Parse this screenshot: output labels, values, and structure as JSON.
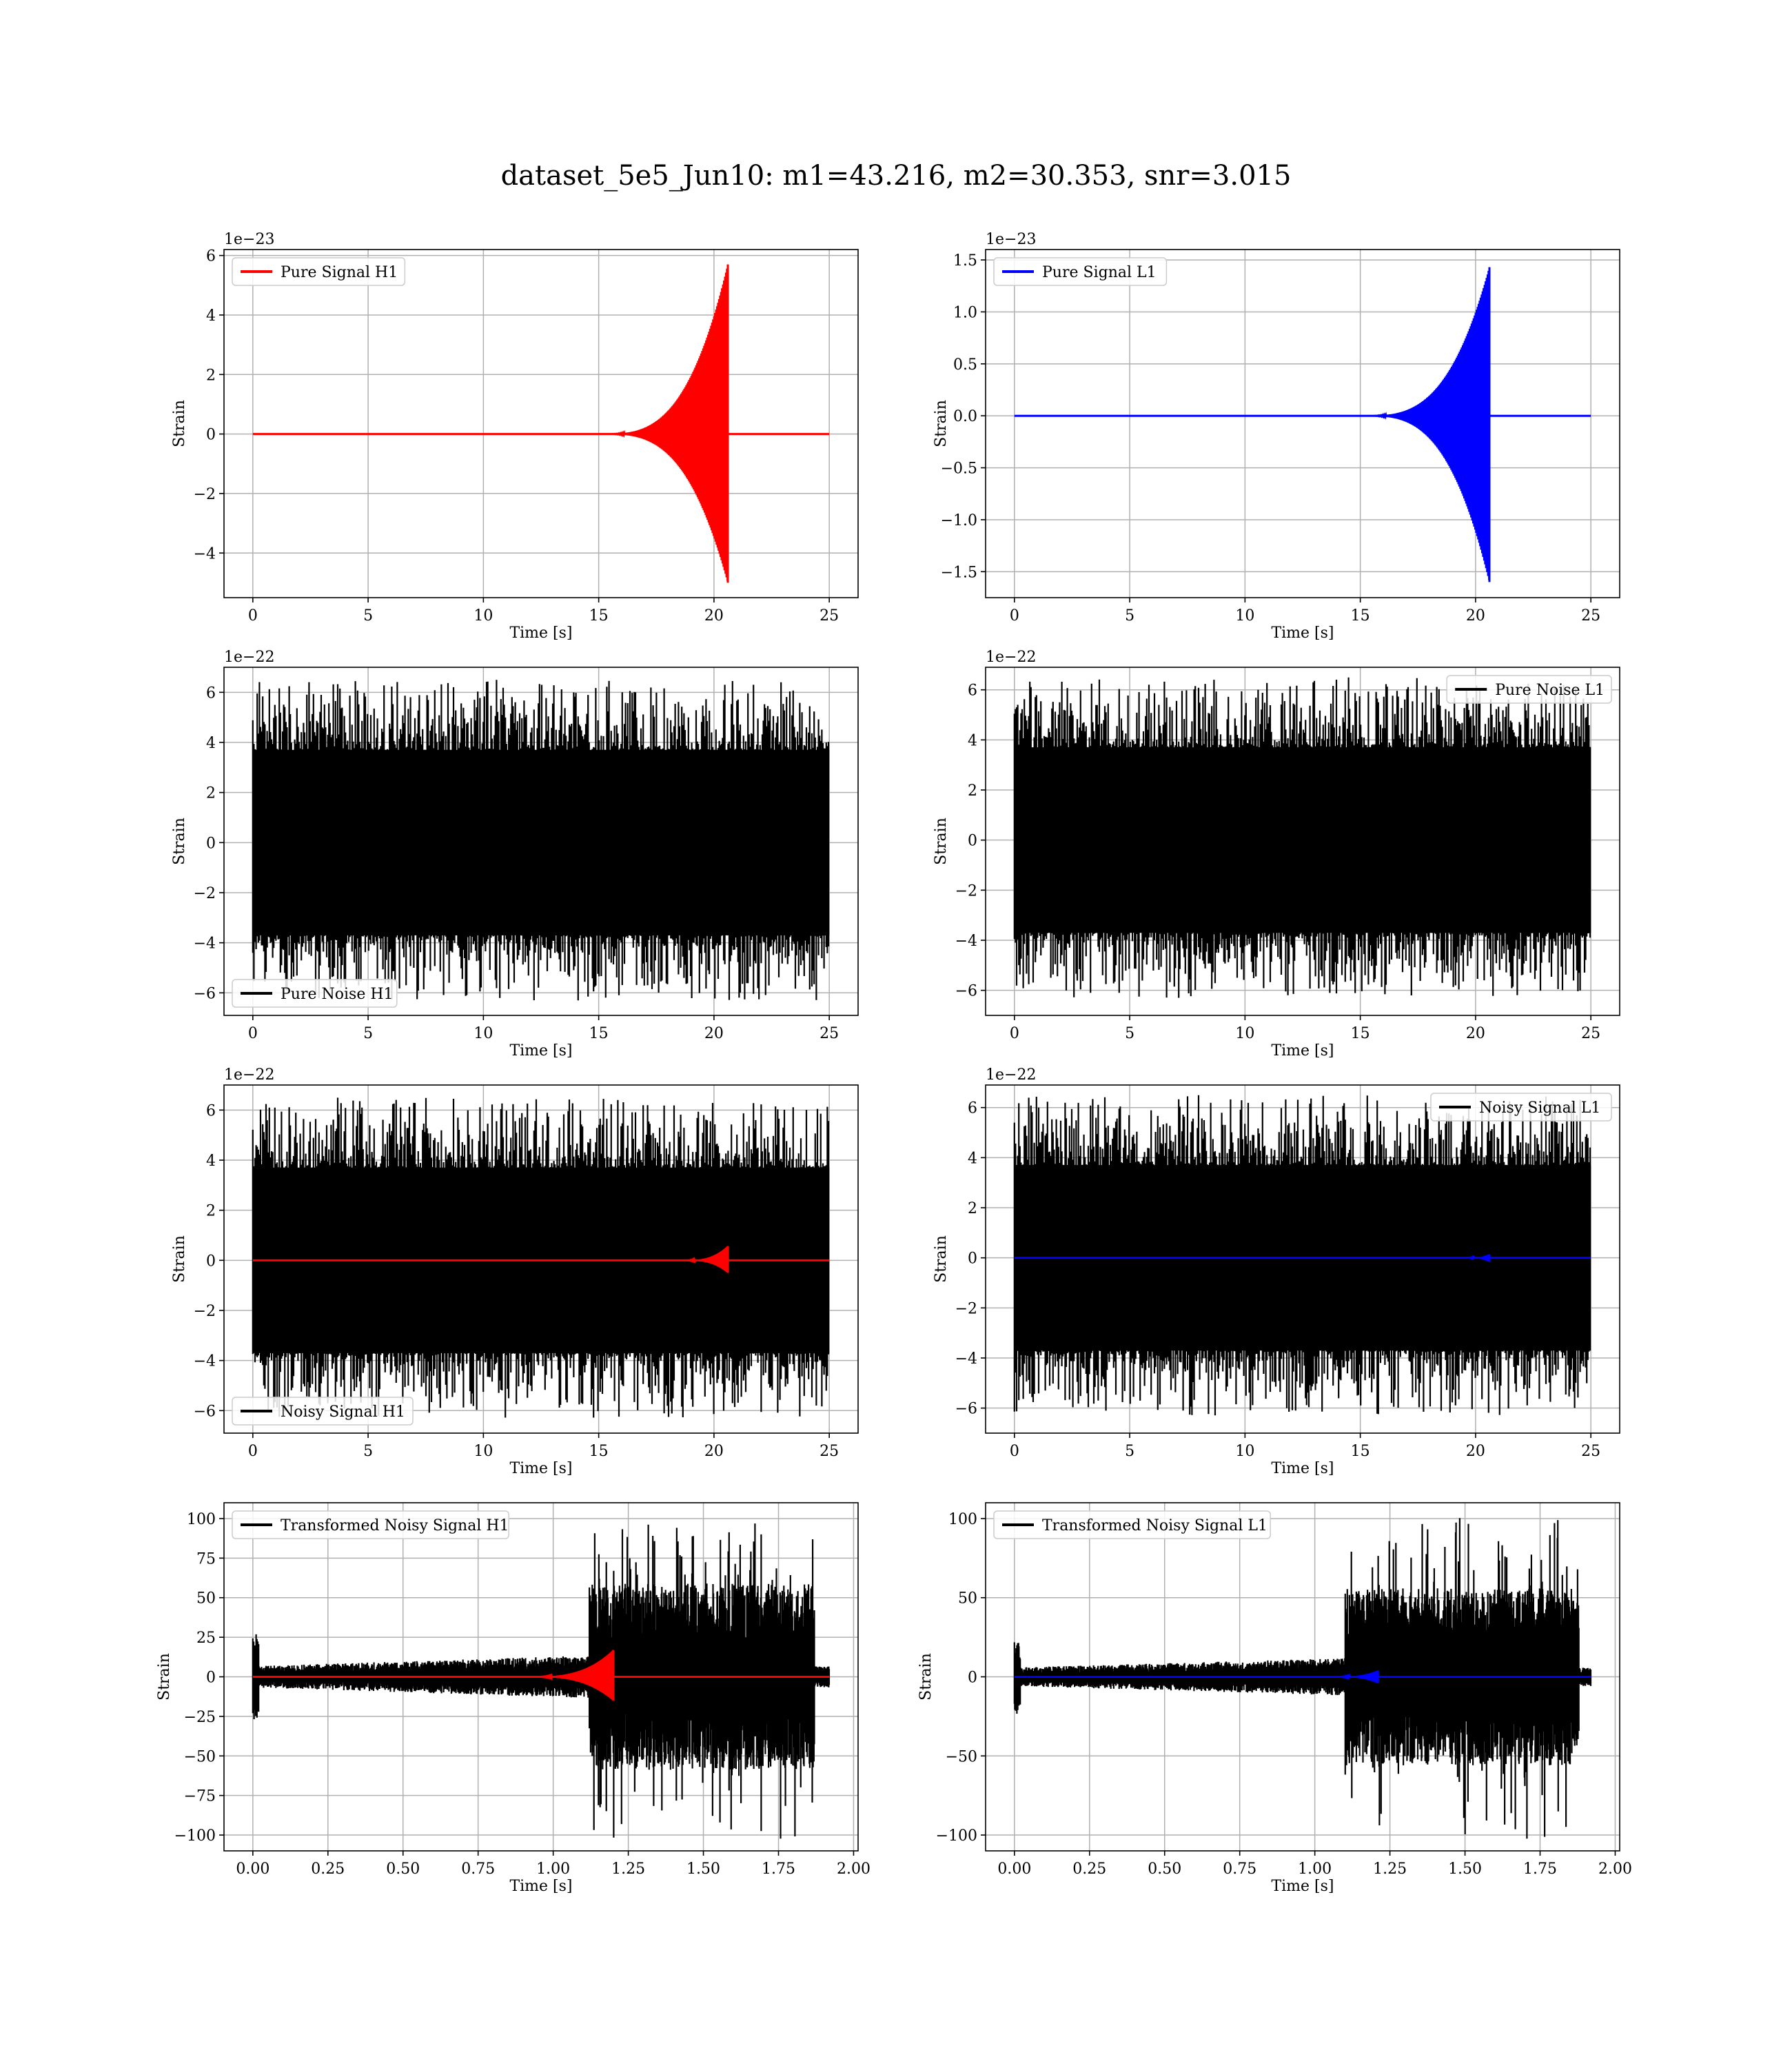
{
  "figure_title": "dataset_5e5_Jun10: m1=43.216, m2=30.353, snr=3.015",
  "chart_data": [
    {
      "type": "line",
      "panel": "pure-signal-h1",
      "xlabel": "Time [s]",
      "ylabel": "Strain",
      "offset_label": "1e−23",
      "xlim": [
        -1.25,
        26.25
      ],
      "ylim": [
        -5.5,
        6.2
      ],
      "xticks": [
        0,
        5,
        10,
        15,
        20,
        25
      ],
      "xtick_labels": [
        "0",
        "5",
        "10",
        "15",
        "20",
        "25"
      ],
      "yticks": [
        -4,
        -2,
        0,
        2,
        4,
        6
      ],
      "ytick_labels": [
        "−4",
        "−2",
        "0",
        "2",
        "4",
        "6"
      ],
      "legend": {
        "position": "upper-left",
        "entries": [
          {
            "label": "Pure Signal H1",
            "color": "#ff0000"
          }
        ]
      },
      "grid": true,
      "series": [
        {
          "name": "Pure Signal H1",
          "color": "#ff0000",
          "kind": "chirp",
          "x_start": 0,
          "x_merger": 20.6,
          "x_end": 25,
          "x_visible_start": 15,
          "peak_pos": 5.7,
          "peak_neg": -5.0
        }
      ]
    },
    {
      "type": "line",
      "panel": "pure-signal-l1",
      "xlabel": "Time [s]",
      "ylabel": "Strain",
      "offset_label": "1e−23",
      "xlim": [
        -1.25,
        26.25
      ],
      "ylim": [
        -1.75,
        1.6
      ],
      "xticks": [
        0,
        5,
        10,
        15,
        20,
        25
      ],
      "xtick_labels": [
        "0",
        "5",
        "10",
        "15",
        "20",
        "25"
      ],
      "yticks": [
        -1.5,
        -1.0,
        -0.5,
        0.0,
        0.5,
        1.0,
        1.5
      ],
      "ytick_labels": [
        "−1.5",
        "−1.0",
        "−0.5",
        "0.0",
        "0.5",
        "1.0",
        "1.5"
      ],
      "legend": {
        "position": "upper-left",
        "entries": [
          {
            "label": "Pure Signal L1",
            "color": "#0000ff"
          }
        ]
      },
      "grid": true,
      "series": [
        {
          "name": "Pure Signal L1",
          "color": "#0000ff",
          "kind": "chirp",
          "x_start": 0,
          "x_merger": 20.6,
          "x_end": 25,
          "x_visible_start": 15,
          "peak_pos": 1.43,
          "peak_neg": -1.6
        }
      ]
    },
    {
      "type": "line",
      "panel": "pure-noise-h1",
      "xlabel": "Time [s]",
      "ylabel": "Strain",
      "offset_label": "1e−22",
      "xlim": [
        -1.25,
        26.25
      ],
      "ylim": [
        -6.9,
        7.0
      ],
      "xticks": [
        0,
        5,
        10,
        15,
        20,
        25
      ],
      "xtick_labels": [
        "0",
        "5",
        "10",
        "15",
        "20",
        "25"
      ],
      "yticks": [
        -6,
        -4,
        -2,
        0,
        2,
        4,
        6
      ],
      "ytick_labels": [
        "−6",
        "−4",
        "−2",
        "0",
        "2",
        "4",
        "6"
      ],
      "legend": {
        "position": "lower-left",
        "entries": [
          {
            "label": "Pure Noise H1",
            "color": "#000000"
          }
        ]
      },
      "grid": true,
      "series": [
        {
          "name": "Pure Noise H1",
          "color": "#000000",
          "kind": "noise",
          "x_start": 0,
          "x_end": 25,
          "core": 3.7,
          "max": 6.5,
          "min": -6.3
        }
      ]
    },
    {
      "type": "line",
      "panel": "pure-noise-l1",
      "xlabel": "Time [s]",
      "ylabel": "Strain",
      "offset_label": "1e−22",
      "xlim": [
        -1.25,
        26.25
      ],
      "ylim": [
        -7.0,
        6.9
      ],
      "xticks": [
        0,
        5,
        10,
        15,
        20,
        25
      ],
      "xtick_labels": [
        "0",
        "5",
        "10",
        "15",
        "20",
        "25"
      ],
      "yticks": [
        -6,
        -4,
        -2,
        0,
        2,
        4,
        6
      ],
      "ytick_labels": [
        "−6",
        "−4",
        "−2",
        "0",
        "2",
        "4",
        "6"
      ],
      "legend": {
        "position": "upper-right",
        "entries": [
          {
            "label": "Pure Noise L1",
            "color": "#000000"
          }
        ]
      },
      "grid": true,
      "series": [
        {
          "name": "Pure Noise L1",
          "color": "#000000",
          "kind": "noise",
          "x_start": 0,
          "x_end": 25,
          "core": 3.7,
          "max": 6.5,
          "min": -6.3
        }
      ]
    },
    {
      "type": "line",
      "panel": "noisy-signal-h1",
      "xlabel": "Time [s]",
      "ylabel": "Strain",
      "offset_label": "1e−22",
      "xlim": [
        -1.25,
        26.25
      ],
      "ylim": [
        -6.9,
        7.0
      ],
      "xticks": [
        0,
        5,
        10,
        15,
        20,
        25
      ],
      "xtick_labels": [
        "0",
        "5",
        "10",
        "15",
        "20",
        "25"
      ],
      "yticks": [
        -6,
        -4,
        -2,
        0,
        2,
        4,
        6
      ],
      "ytick_labels": [
        "−6",
        "−4",
        "−2",
        "0",
        "2",
        "4",
        "6"
      ],
      "legend": {
        "position": "lower-left",
        "entries": [
          {
            "label": "Noisy Signal H1",
            "color": "#000000"
          }
        ]
      },
      "grid": true,
      "series": [
        {
          "name": "Noisy Signal H1",
          "color": "#000000",
          "kind": "noise",
          "x_start": 0,
          "x_end": 25,
          "core": 3.7,
          "max": 6.5,
          "min": -6.3
        },
        {
          "color": "#ff0000",
          "kind": "chirp",
          "x_start": 0,
          "x_merger": 20.6,
          "x_end": 25,
          "x_visible_start": 18.5,
          "peak_pos": 0.57,
          "peak_neg": -0.5
        }
      ]
    },
    {
      "type": "line",
      "panel": "noisy-signal-l1",
      "xlabel": "Time [s]",
      "ylabel": "Strain",
      "offset_label": "1e−22",
      "xlim": [
        -1.25,
        26.25
      ],
      "ylim": [
        -7.0,
        6.9
      ],
      "xticks": [
        0,
        5,
        10,
        15,
        20,
        25
      ],
      "xtick_labels": [
        "0",
        "5",
        "10",
        "15",
        "20",
        "25"
      ],
      "yticks": [
        -6,
        -4,
        -2,
        0,
        2,
        4,
        6
      ],
      "ytick_labels": [
        "−6",
        "−4",
        "−2",
        "0",
        "2",
        "4",
        "6"
      ],
      "legend": {
        "position": "upper-right",
        "entries": [
          {
            "label": "Noisy Signal L1",
            "color": "#000000"
          }
        ]
      },
      "grid": true,
      "series": [
        {
          "name": "Noisy Signal L1",
          "color": "#000000",
          "kind": "noise",
          "x_start": 0,
          "x_end": 25,
          "core": 3.7,
          "max": 6.5,
          "min": -6.3
        },
        {
          "color": "#0000ff",
          "kind": "chirp",
          "x_start": 0,
          "x_merger": 20.6,
          "x_end": 25,
          "x_visible_start": 19.5,
          "peak_pos": 0.14,
          "peak_neg": -0.16
        }
      ]
    },
    {
      "type": "line",
      "panel": "transformed-noisy-signal-h1",
      "xlabel": "Time [s]",
      "ylabel": "Strain",
      "offset_label": "",
      "xlim": [
        -0.096,
        2.015
      ],
      "ylim": [
        -110,
        110
      ],
      "xticks": [
        0,
        0.25,
        0.5,
        0.75,
        1.0,
        1.25,
        1.5,
        1.75,
        2.0
      ],
      "xtick_labels": [
        "0.00",
        "0.25",
        "0.50",
        "0.75",
        "1.00",
        "1.25",
        "1.50",
        "1.75",
        "2.00"
      ],
      "yticks": [
        -100,
        -75,
        -50,
        -25,
        0,
        25,
        50,
        75,
        100
      ],
      "ytick_labels": [
        "−100",
        "−75",
        "−50",
        "−25",
        "0",
        "25",
        "50",
        "75",
        "100"
      ],
      "legend": {
        "position": "upper-left",
        "entries": [
          {
            "label": "Transformed Noisy Signal H1",
            "color": "#000000"
          }
        ]
      },
      "grid": true,
      "series": [
        {
          "name": "Transformed Noisy Signal H1",
          "color": "#000000",
          "kind": "whitened",
          "x_start": 0,
          "x_end": 1.92,
          "x_step": 1.12,
          "x_drop": 1.87,
          "core_before": 8,
          "core_after": 42,
          "max": 97,
          "min": -103
        },
        {
          "color": "#ff0000",
          "kind": "chirp",
          "x_start": 0,
          "x_merger": 1.2,
          "x_end": 1.92,
          "x_visible_start": 0.9,
          "peak_pos": 17,
          "peak_neg": -15
        }
      ]
    },
    {
      "type": "line",
      "panel": "transformed-noisy-signal-l1",
      "xlabel": "Time [s]",
      "ylabel": "Strain",
      "offset_label": "",
      "xlim": [
        -0.096,
        2.015
      ],
      "ylim": [
        -110,
        110
      ],
      "xticks": [
        0,
        0.25,
        0.5,
        0.75,
        1.0,
        1.25,
        1.5,
        1.75,
        2.0
      ],
      "xtick_labels": [
        "0.00",
        "0.25",
        "0.50",
        "0.75",
        "1.00",
        "1.25",
        "1.50",
        "1.75",
        "2.00"
      ],
      "yticks": [
        -100,
        -50,
        0,
        50,
        100
      ],
      "ytick_labels": [
        "−100",
        "−50",
        "0",
        "50",
        "100"
      ],
      "legend": {
        "position": "upper-left",
        "entries": [
          {
            "label": "Transformed Noisy Signal L1",
            "color": "#000000"
          }
        ]
      },
      "grid": true,
      "series": [
        {
          "name": "Transformed Noisy Signal L1",
          "color": "#000000",
          "kind": "whitened",
          "x_start": 0,
          "x_end": 1.92,
          "x_step": 1.1,
          "x_drop": 1.88,
          "core_before": 7,
          "core_after": 40,
          "max": 102,
          "min": -103
        },
        {
          "color": "#0000ff",
          "kind": "chirp",
          "x_start": 0,
          "x_merger": 1.21,
          "x_end": 1.92,
          "x_visible_start": 1.05,
          "peak_pos": 4,
          "peak_neg": -4
        }
      ]
    }
  ]
}
